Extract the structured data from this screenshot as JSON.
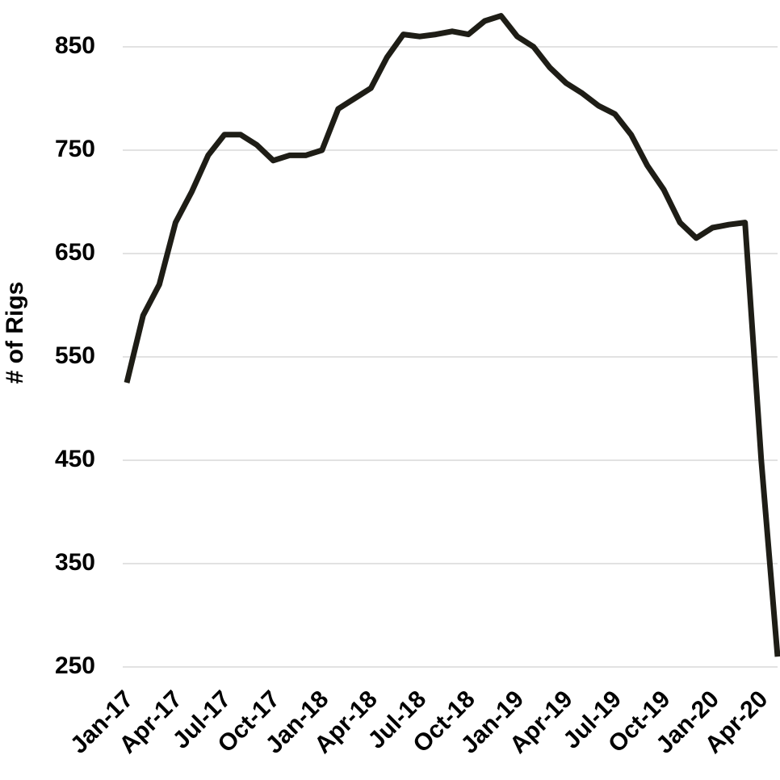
{
  "chart_data": {
    "type": "line",
    "y_label": "# of Rigs",
    "categories": [
      "Jan-17",
      null,
      null,
      "Apr-17",
      null,
      null,
      "Jul-17",
      null,
      null,
      "Oct-17",
      null,
      null,
      "Jan-18",
      null,
      null,
      "Apr-18",
      null,
      null,
      "Jul-18",
      null,
      null,
      "Oct-18",
      null,
      null,
      "Jan-19",
      null,
      null,
      "Apr-19",
      null,
      null,
      "Jul-19",
      null,
      null,
      "Oct-19",
      null,
      null,
      "Jan-20",
      null,
      null,
      "Apr-20",
      null
    ],
    "series": [
      {
        "color": "#1e1d16",
        "values": [
          525,
          590,
          620,
          680,
          710,
          745,
          765,
          765,
          755,
          740,
          745,
          745,
          750,
          790,
          800,
          810,
          840,
          862,
          860,
          862,
          865,
          862,
          875,
          880,
          860,
          850,
          830,
          815,
          805,
          793,
          785,
          765,
          735,
          712,
          680,
          665,
          675,
          678,
          680,
          450,
          260
        ]
      }
    ],
    "ylim": [
      250,
      850
    ],
    "yticks": [
      250,
      350,
      450,
      550,
      650,
      750,
      850
    ],
    "grid": true
  }
}
